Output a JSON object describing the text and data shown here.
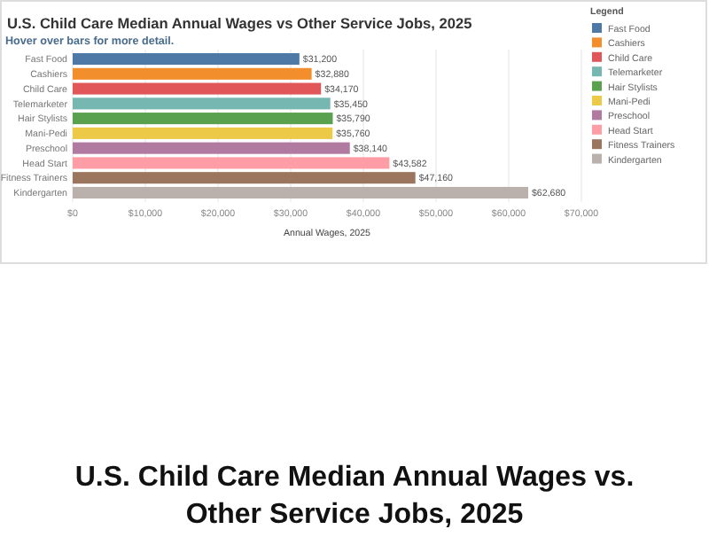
{
  "chart_data": {
    "type": "bar",
    "orientation": "horizontal",
    "title": "U.S. Child Care Median Annual Wages vs Other Service Jobs, 2025",
    "subtitle": "Hover over bars for more detail.",
    "xlabel": "Annual Wages, 2025",
    "legend_title": "Legend",
    "categories": [
      "Fast Food",
      "Cashiers",
      "Child Care",
      "Telemarketer",
      "Hair Stylists",
      "Mani-Pedi",
      "Preschool",
      "Head Start",
      "Fitness Trainers",
      "Kindergarten"
    ],
    "series": [
      {
        "name": "Fast Food",
        "color": "#4e79a7",
        "values": [
          31200,
          null,
          null,
          null,
          null,
          null,
          null,
          null,
          null,
          null
        ],
        "value_labels": [
          "$31,200",
          null,
          null,
          null,
          null,
          null,
          null,
          null,
          null,
          null
        ]
      },
      {
        "name": "Cashiers",
        "color": "#f28e2b",
        "values": [
          null,
          32880,
          null,
          null,
          null,
          null,
          null,
          null,
          null,
          null
        ],
        "value_labels": [
          null,
          "$32,880",
          null,
          null,
          null,
          null,
          null,
          null,
          null,
          null
        ]
      },
      {
        "name": "Child Care",
        "color": "#e15759",
        "values": [
          null,
          null,
          34170,
          null,
          null,
          null,
          null,
          null,
          null,
          null
        ],
        "value_labels": [
          null,
          null,
          "$34,170",
          null,
          null,
          null,
          null,
          null,
          null,
          null
        ]
      },
      {
        "name": "Telemarketer",
        "color": "#76b7b2",
        "values": [
          null,
          null,
          null,
          35450,
          null,
          null,
          null,
          null,
          null,
          null
        ],
        "value_labels": [
          null,
          null,
          null,
          "$35,450",
          null,
          null,
          null,
          null,
          null,
          null
        ]
      },
      {
        "name": "Hair Stylists",
        "color": "#59a14f",
        "values": [
          null,
          null,
          null,
          null,
          35790,
          null,
          null,
          null,
          null,
          null
        ],
        "value_labels": [
          null,
          null,
          null,
          null,
          "$35,790",
          null,
          null,
          null,
          null,
          null
        ]
      },
      {
        "name": "Mani-Pedi",
        "color": "#edc948",
        "values": [
          null,
          null,
          null,
          null,
          null,
          35760,
          null,
          null,
          null,
          null
        ],
        "value_labels": [
          null,
          null,
          null,
          null,
          null,
          "$35,760",
          null,
          null,
          null,
          null
        ]
      },
      {
        "name": "Preschool",
        "color": "#b07aa1",
        "values": [
          null,
          null,
          null,
          null,
          null,
          null,
          38140,
          null,
          null,
          null
        ],
        "value_labels": [
          null,
          null,
          null,
          null,
          null,
          null,
          "$38,140",
          null,
          null,
          null
        ]
      },
      {
        "name": "Head Start",
        "color": "#ff9da7",
        "values": [
          null,
          null,
          null,
          null,
          null,
          null,
          null,
          43582,
          null,
          null
        ],
        "value_labels": [
          null,
          null,
          null,
          null,
          null,
          null,
          null,
          "$43,582",
          null,
          null
        ]
      },
      {
        "name": "Fitness Trainers",
        "color": "#9c755f",
        "values": [
          null,
          null,
          null,
          null,
          null,
          null,
          null,
          null,
          47160,
          null
        ],
        "value_labels": [
          null,
          null,
          null,
          null,
          null,
          null,
          null,
          null,
          "$47,160",
          null
        ]
      },
      {
        "name": "Kindergarten",
        "color": "#bab0ac",
        "values": [
          null,
          null,
          null,
          null,
          null,
          null,
          null,
          null,
          null,
          62680
        ],
        "value_labels": [
          null,
          null,
          null,
          null,
          null,
          null,
          null,
          null,
          null,
          "$62,680"
        ]
      }
    ],
    "xlim": [
      0,
      70000
    ],
    "xticks": [
      {
        "value": 0,
        "label": "$0"
      },
      {
        "value": 10000,
        "label": "$10,000"
      },
      {
        "value": 20000,
        "label": "$20,000"
      },
      {
        "value": 30000,
        "label": "$30,000"
      },
      {
        "value": 40000,
        "label": "$40,000"
      },
      {
        "value": 50000,
        "label": "$50,000"
      },
      {
        "value": 60000,
        "label": "$60,000"
      },
      {
        "value": 70000,
        "label": "$70,000"
      }
    ],
    "grid": "x",
    "legend": "right",
    "annotations": [
      "U.S. Child Care Median Annual Wages vs. Other Service Jobs, 2025"
    ]
  }
}
